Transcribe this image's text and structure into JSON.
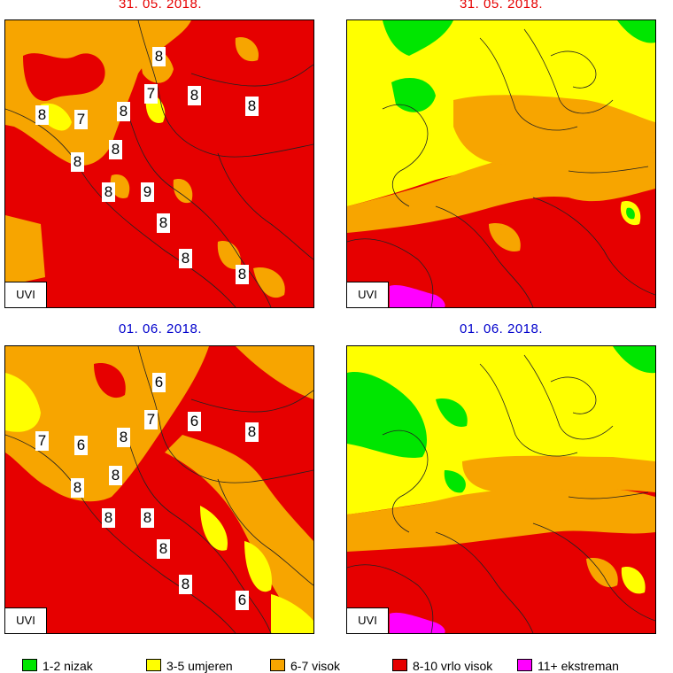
{
  "colors": {
    "low": "#00e600",
    "moderate": "#ffff00",
    "high": "#f7a500",
    "very_high": "#e60000",
    "extreme": "#ff00ff",
    "date_top": "#e60000",
    "date_bottom": "#0000cc"
  },
  "panels": [
    {
      "date": "31. 05. 2018.",
      "scale": "regional",
      "uvi_label": "UVI",
      "values": [
        "8",
        "7",
        "8",
        "8",
        "8",
        "7",
        "8",
        "8",
        "8",
        "8",
        "9",
        "8",
        "8",
        "8"
      ]
    },
    {
      "date": "31. 05. 2018.",
      "scale": "europe",
      "uvi_label": "UVI"
    },
    {
      "date": "01. 06. 2018.",
      "scale": "regional",
      "uvi_label": "UVI",
      "values": [
        "6",
        "7",
        "6",
        "8",
        "7",
        "6",
        "8",
        "8",
        "8",
        "8",
        "8",
        "8",
        "8",
        "6"
      ]
    },
    {
      "date": "01. 06. 2018.",
      "scale": "europe",
      "uvi_label": "UVI"
    }
  ],
  "legend": [
    {
      "label": "1-2 nizak",
      "color": "#00e600"
    },
    {
      "label": "3-5 umjeren",
      "color": "#ffff00"
    },
    {
      "label": "6-7 visok",
      "color": "#f7a500"
    },
    {
      "label": "8-10 vrlo visok",
      "color": "#e60000"
    },
    {
      "label": "11+ ekstreman",
      "color": "#ff00ff"
    }
  ]
}
